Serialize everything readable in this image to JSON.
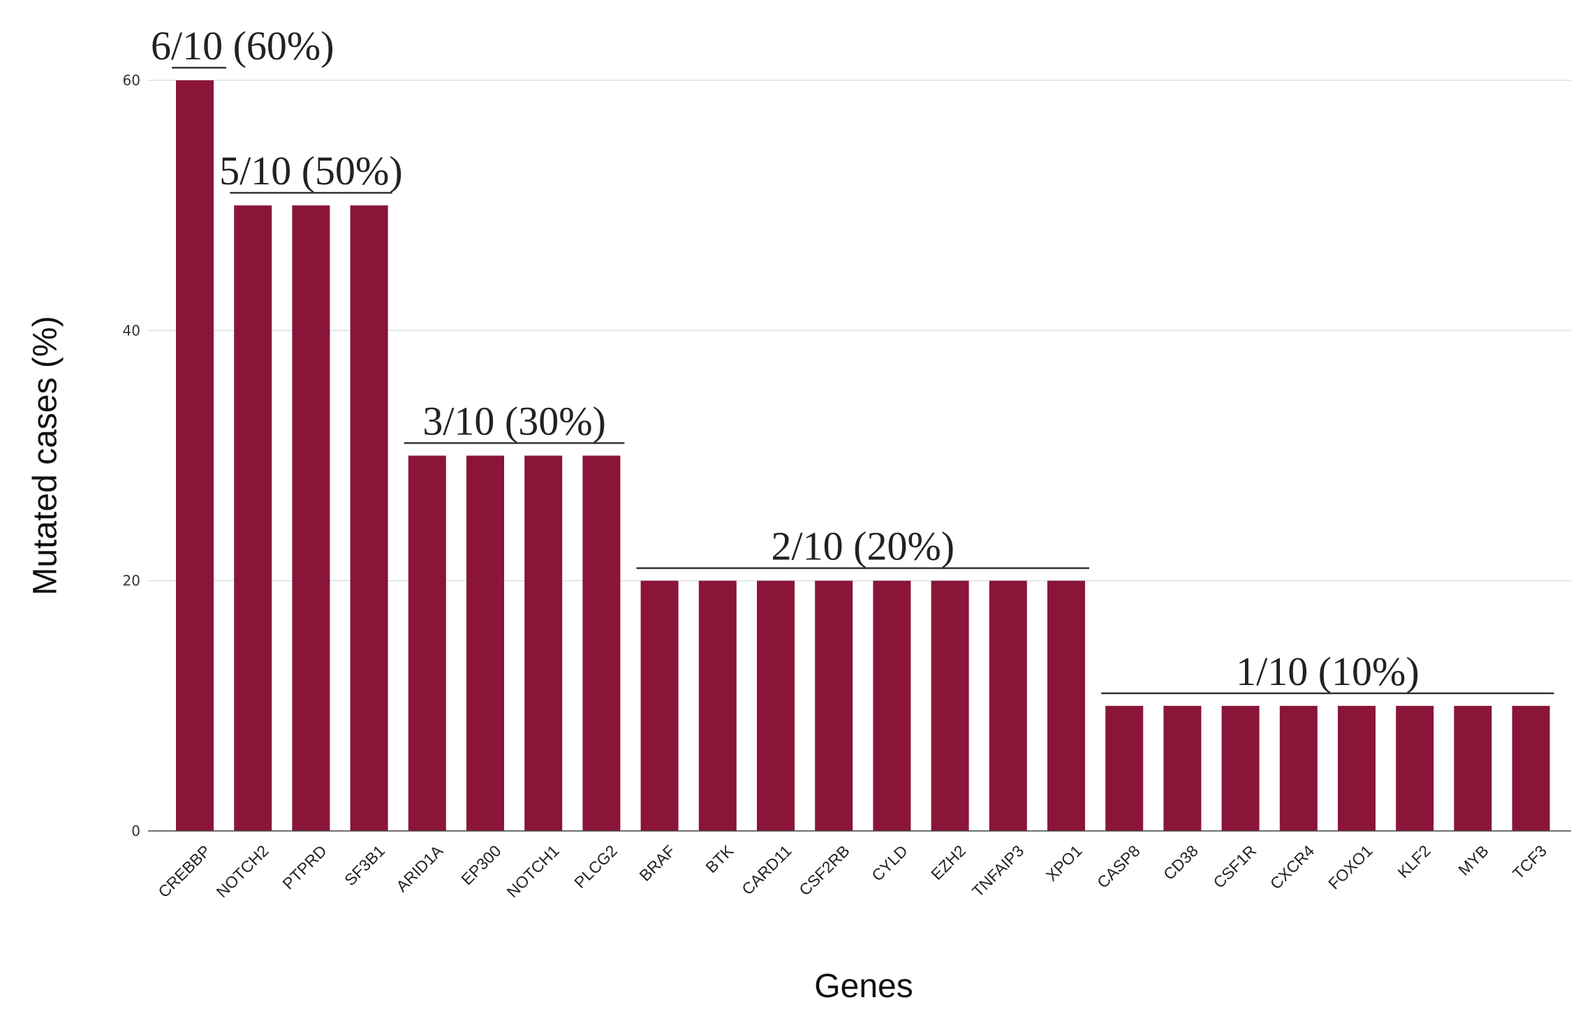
{
  "chart_data": {
    "type": "bar",
    "xlabel": "Genes",
    "ylabel": "Mutated cases (%)",
    "ylim": [
      0,
      60
    ],
    "yticks": [
      0,
      20,
      40,
      60
    ],
    "grid": true,
    "bar_color": "#8a1538",
    "categories": [
      "CREBBP",
      "NOTCH2",
      "PTPRD",
      "SF3B1",
      "ARID1A",
      "EP300",
      "NOTCH1",
      "PLCG2",
      "BRAF",
      "BTK",
      "CARD11",
      "CSF2RB",
      "CYLD",
      "EZH2",
      "TNFAIP3",
      "XPO1",
      "CASP8",
      "CD38",
      "CSF1R",
      "CXCR4",
      "FOXO1",
      "KLF2",
      "MYB",
      "TCF3"
    ],
    "values": [
      60,
      50,
      50,
      50,
      30,
      30,
      30,
      30,
      20,
      20,
      20,
      20,
      20,
      20,
      20,
      20,
      10,
      10,
      10,
      10,
      10,
      10,
      10,
      10
    ],
    "annotations": [
      {
        "label": "6/10 (60%)",
        "first": 0,
        "last": 0,
        "value": 60
      },
      {
        "label": "5/10 (50%)",
        "first": 1,
        "last": 3,
        "value": 50
      },
      {
        "label": "3/10 (30%)",
        "first": 4,
        "last": 7,
        "value": 30
      },
      {
        "label": "2/10 (20%)",
        "first": 8,
        "last": 15,
        "value": 20
      },
      {
        "label": "1/10 (10%)",
        "first": 16,
        "last": 23,
        "value": 10
      }
    ]
  }
}
